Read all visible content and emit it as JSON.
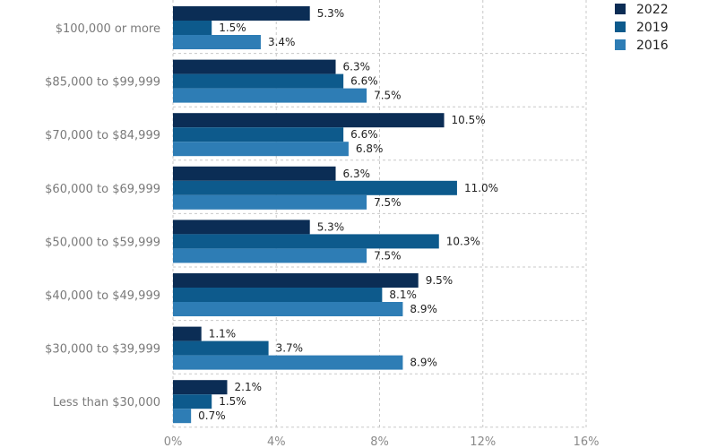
{
  "chart_data": {
    "type": "bar",
    "orientation": "horizontal",
    "categories": [
      "$100,000 or more",
      "$85,000 to $99,999",
      "$70,000 to $84,999",
      "$60,000 to $69,999",
      "$50,000 to $59,999",
      "$40,000 to $49,999",
      "$30,000 to $39,999",
      "Less than $30,000"
    ],
    "series": [
      {
        "name": "2022",
        "color": "#0b2d55",
        "values": [
          5.3,
          6.3,
          10.5,
          6.3,
          5.3,
          9.5,
          1.1,
          2.1
        ],
        "labels": [
          "5.3%",
          "6.3%",
          "10.5%",
          "6.3%",
          "5.3%",
          "9.5%",
          "1.1%",
          "2.1%"
        ]
      },
      {
        "name": "2019",
        "color": "#0d5a8c",
        "values": [
          1.5,
          6.6,
          6.6,
          11.0,
          10.3,
          8.1,
          3.7,
          1.5
        ],
        "labels": [
          "1.5%",
          "6.6%",
          "6.6%",
          "11.0%",
          "10.3%",
          "8.1%",
          "3.7%",
          "1.5%"
        ]
      },
      {
        "name": "2016",
        "color": "#2e7db5",
        "values": [
          3.4,
          7.5,
          6.8,
          7.5,
          7.5,
          8.9,
          8.9,
          0.7
        ],
        "labels": [
          "3.4%",
          "7.5%",
          "6.8%",
          "7.5%",
          "7.5%",
          "8.9%",
          "8.9%",
          "0.7%"
        ]
      }
    ],
    "xlim": [
      0,
      16
    ],
    "xticks": [
      0,
      4,
      8,
      12,
      16
    ],
    "xtick_labels": [
      "0%",
      "4%",
      "8%",
      "12%",
      "16%"
    ],
    "grid": true,
    "legend": "top-right"
  }
}
